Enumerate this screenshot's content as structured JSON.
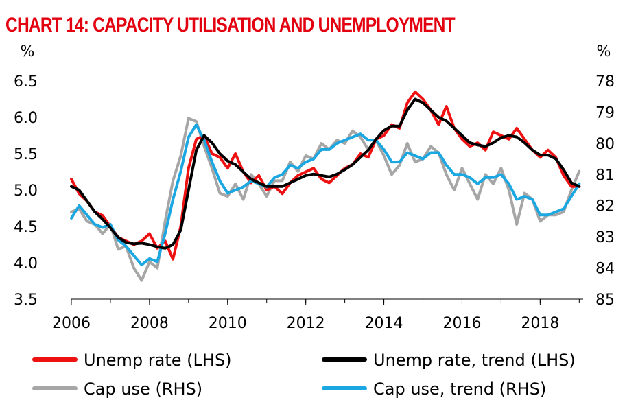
{
  "chart_data": {
    "type": "line",
    "title": "CHART 14: CAPACITY UTILISATION AND UNEMPLOYMENT",
    "left_axis": {
      "unit": "%",
      "range": [
        3.5,
        6.5
      ],
      "ticks": [
        "3.5",
        "4.0",
        "4.5",
        "5.0",
        "5.5",
        "6.0",
        "6.5"
      ]
    },
    "right_axis": {
      "unit": "%",
      "range": [
        78,
        85
      ],
      "inverted": true,
      "ticks": [
        "78",
        "79",
        "80",
        "81",
        "82",
        "83",
        "84",
        "85"
      ]
    },
    "x_axis": {
      "range": [
        2006,
        2019.1
      ],
      "ticks": [
        "2006",
        "2008",
        "2010",
        "2012",
        "2014",
        "2016",
        "2018"
      ]
    },
    "legend_position": "bottom",
    "series": [
      {
        "name": "Unemp rate (LHS)",
        "axis": "left",
        "color": "#ee1111",
        "x": [
          2006.0,
          2006.2,
          2006.4,
          2006.6,
          2006.8,
          2007.0,
          2007.2,
          2007.4,
          2007.6,
          2007.8,
          2008.0,
          2008.2,
          2008.4,
          2008.6,
          2008.8,
          2009.0,
          2009.2,
          2009.4,
          2009.6,
          2009.8,
          2010.0,
          2010.2,
          2010.4,
          2010.6,
          2010.8,
          2011.0,
          2011.2,
          2011.4,
          2011.6,
          2011.8,
          2012.0,
          2012.2,
          2012.4,
          2012.6,
          2012.8,
          2013.0,
          2013.2,
          2013.4,
          2013.6,
          2013.8,
          2014.0,
          2014.2,
          2014.4,
          2014.6,
          2014.8,
          2015.0,
          2015.2,
          2015.4,
          2015.6,
          2015.8,
          2016.0,
          2016.2,
          2016.4,
          2016.6,
          2016.8,
          2017.0,
          2017.2,
          2017.4,
          2017.6,
          2017.8,
          2018.0,
          2018.2,
          2018.4,
          2018.6,
          2018.8,
          2019.0
        ],
        "values": [
          5.15,
          4.95,
          4.85,
          4.7,
          4.65,
          4.5,
          4.35,
          4.3,
          4.25,
          4.3,
          4.4,
          4.2,
          4.3,
          4.05,
          4.5,
          5.3,
          5.7,
          5.75,
          5.5,
          5.45,
          5.3,
          5.5,
          5.25,
          5.1,
          5.2,
          5.0,
          5.05,
          4.95,
          5.1,
          5.2,
          5.25,
          5.3,
          5.15,
          5.1,
          5.2,
          5.3,
          5.35,
          5.5,
          5.45,
          5.7,
          5.75,
          5.9,
          5.85,
          6.2,
          6.35,
          6.25,
          6.1,
          5.9,
          6.15,
          5.85,
          5.7,
          5.6,
          5.65,
          5.55,
          5.8,
          5.75,
          5.7,
          5.85,
          5.7,
          5.55,
          5.45,
          5.55,
          5.45,
          5.2,
          5.05,
          5.05
        ]
      },
      {
        "name": "Unemp rate, trend (LHS)",
        "axis": "left",
        "color": "#000000",
        "x": [
          2006.0,
          2006.2,
          2006.4,
          2006.6,
          2006.8,
          2007.0,
          2007.2,
          2007.4,
          2007.6,
          2007.8,
          2008.0,
          2008.2,
          2008.4,
          2008.6,
          2008.8,
          2009.0,
          2009.2,
          2009.4,
          2009.6,
          2009.8,
          2010.0,
          2010.2,
          2010.4,
          2010.6,
          2010.8,
          2011.0,
          2011.2,
          2011.4,
          2011.6,
          2011.8,
          2012.0,
          2012.2,
          2012.4,
          2012.6,
          2012.8,
          2013.0,
          2013.2,
          2013.4,
          2013.6,
          2013.8,
          2014.0,
          2014.2,
          2014.4,
          2014.6,
          2014.8,
          2015.0,
          2015.2,
          2015.4,
          2015.6,
          2015.8,
          2016.0,
          2016.2,
          2016.4,
          2016.6,
          2016.8,
          2017.0,
          2017.2,
          2017.4,
          2017.6,
          2017.8,
          2018.0,
          2018.2,
          2018.4,
          2018.6,
          2018.8,
          2019.0
        ],
        "values": [
          5.05,
          5.0,
          4.85,
          4.7,
          4.6,
          4.48,
          4.35,
          4.28,
          4.26,
          4.27,
          4.25,
          4.22,
          4.2,
          4.25,
          4.45,
          5.0,
          5.55,
          5.75,
          5.65,
          5.5,
          5.4,
          5.35,
          5.25,
          5.15,
          5.1,
          5.05,
          5.05,
          5.05,
          5.1,
          5.15,
          5.2,
          5.22,
          5.2,
          5.18,
          5.22,
          5.28,
          5.35,
          5.45,
          5.55,
          5.7,
          5.82,
          5.88,
          5.88,
          6.1,
          6.25,
          6.2,
          6.1,
          6.0,
          5.95,
          5.85,
          5.75,
          5.65,
          5.62,
          5.6,
          5.65,
          5.72,
          5.75,
          5.73,
          5.65,
          5.55,
          5.48,
          5.48,
          5.43,
          5.28,
          5.1,
          5.05
        ]
      },
      {
        "name": "Cap use (RHS)",
        "axis": "right",
        "color": "#a6a6a6",
        "x": [
          2006.0,
          2006.2,
          2006.4,
          2006.6,
          2006.8,
          2007.0,
          2007.2,
          2007.4,
          2007.6,
          2007.8,
          2008.0,
          2008.2,
          2008.4,
          2008.6,
          2008.8,
          2009.0,
          2009.2,
          2009.4,
          2009.6,
          2009.8,
          2010.0,
          2010.2,
          2010.4,
          2010.6,
          2010.8,
          2011.0,
          2011.2,
          2011.4,
          2011.6,
          2011.8,
          2012.0,
          2012.2,
          2012.4,
          2012.6,
          2012.8,
          2013.0,
          2013.2,
          2013.4,
          2013.6,
          2013.8,
          2014.0,
          2014.2,
          2014.4,
          2014.6,
          2014.8,
          2015.0,
          2015.2,
          2015.4,
          2015.6,
          2015.8,
          2016.0,
          2016.2,
          2016.4,
          2016.6,
          2016.8,
          2017.0,
          2017.2,
          2017.4,
          2017.6,
          2017.8,
          2018.0,
          2018.2,
          2018.4,
          2018.6,
          2018.8,
          2019.0
        ],
        "values": [
          82.2,
          82.1,
          82.5,
          82.6,
          82.9,
          82.6,
          83.4,
          83.3,
          84.0,
          84.4,
          83.8,
          84.0,
          82.5,
          81.2,
          80.4,
          79.2,
          79.3,
          80.1,
          80.8,
          81.6,
          81.7,
          81.3,
          81.8,
          81.0,
          81.3,
          81.7,
          81.2,
          81.2,
          80.6,
          80.9,
          80.4,
          80.5,
          80.0,
          80.2,
          79.9,
          80.0,
          79.6,
          79.8,
          80.2,
          79.9,
          80.4,
          81.0,
          80.7,
          80.0,
          80.6,
          80.5,
          80.1,
          80.3,
          81.0,
          81.5,
          80.8,
          81.3,
          81.8,
          81.0,
          81.3,
          80.8,
          81.5,
          82.6,
          81.6,
          81.8,
          82.5,
          82.3,
          82.3,
          82.2,
          81.5,
          80.9
        ]
      },
      {
        "name": "Cap use, trend (RHS)",
        "axis": "right",
        "color": "#1ba7e1",
        "x": [
          2006.0,
          2006.2,
          2006.4,
          2006.6,
          2006.8,
          2007.0,
          2007.2,
          2007.4,
          2007.6,
          2007.8,
          2008.0,
          2008.2,
          2008.4,
          2008.6,
          2008.8,
          2009.0,
          2009.2,
          2009.4,
          2009.6,
          2009.8,
          2010.0,
          2010.2,
          2010.4,
          2010.6,
          2010.8,
          2011.0,
          2011.2,
          2011.4,
          2011.6,
          2011.8,
          2012.0,
          2012.2,
          2012.4,
          2012.6,
          2012.8,
          2013.0,
          2013.2,
          2013.4,
          2013.6,
          2013.8,
          2014.0,
          2014.2,
          2014.4,
          2014.6,
          2014.8,
          2015.0,
          2015.2,
          2015.4,
          2015.6,
          2015.8,
          2016.0,
          2016.2,
          2016.4,
          2016.6,
          2016.8,
          2017.0,
          2017.2,
          2017.4,
          2017.6,
          2017.8,
          2018.0,
          2018.2,
          2018.4,
          2018.6,
          2018.8,
          2019.0
        ],
        "values": [
          82.4,
          82.0,
          82.3,
          82.6,
          82.7,
          82.6,
          83.1,
          83.3,
          83.6,
          83.9,
          83.7,
          83.8,
          82.9,
          81.8,
          80.9,
          79.8,
          79.4,
          79.9,
          80.6,
          81.2,
          81.6,
          81.5,
          81.4,
          81.2,
          81.3,
          81.4,
          81.1,
          81.0,
          80.7,
          80.8,
          80.6,
          80.5,
          80.2,
          80.2,
          80.0,
          79.9,
          79.8,
          79.7,
          79.9,
          79.9,
          80.2,
          80.6,
          80.6,
          80.3,
          80.4,
          80.5,
          80.3,
          80.3,
          80.7,
          81.0,
          81.0,
          81.1,
          81.3,
          81.1,
          81.1,
          81.0,
          81.3,
          81.8,
          81.7,
          81.8,
          82.3,
          82.3,
          82.2,
          82.1,
          81.7,
          81.3
        ]
      }
    ]
  }
}
